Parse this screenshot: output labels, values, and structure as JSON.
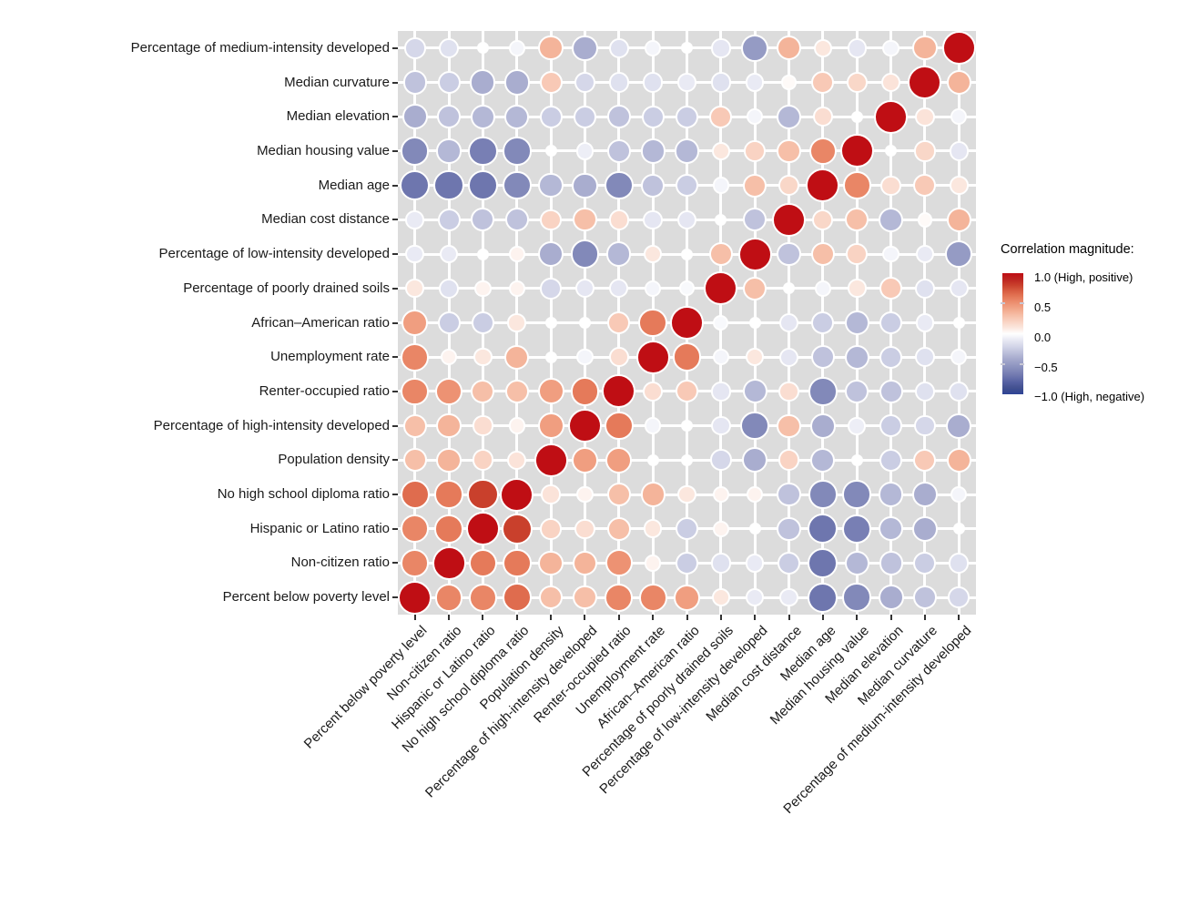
{
  "chart_data": {
    "type": "heatmap",
    "subtype": "correlogram-bubble-matrix",
    "title": "",
    "variables": [
      "Percent below poverty level",
      "Non-citizen ratio",
      "Hispanic or Latino ratio",
      "No high school diploma ratio",
      "Population density",
      "Percentage of high-intensity developed",
      "Renter-occupied ratio",
      "Unemployment rate",
      "African–American ratio",
      "Percentage of poorly drained soils",
      "Percentage of low-intensity developed",
      "Median cost distance",
      "Median age",
      "Median housing value",
      "Median elevation",
      "Median curvature",
      "Percentage of medium-intensity developed"
    ],
    "x_axis_order": "same as variables, left to right",
    "y_axis_order": "reverse of variables, top to bottom",
    "matrix": [
      [
        1.0,
        0.55,
        0.55,
        0.65,
        0.3,
        0.3,
        0.55,
        0.55,
        0.45,
        0.1,
        -0.1,
        -0.1,
        -0.7,
        -0.6,
        -0.4,
        -0.3,
        -0.2
      ],
      [
        0.55,
        1.0,
        0.6,
        0.6,
        0.35,
        0.35,
        0.5,
        0.05,
        -0.25,
        -0.15,
        -0.1,
        -0.25,
        -0.7,
        -0.35,
        -0.3,
        -0.25,
        -0.15
      ],
      [
        0.55,
        0.6,
        1.0,
        0.8,
        0.2,
        0.15,
        0.3,
        0.1,
        -0.25,
        0.05,
        0.0,
        -0.3,
        -0.7,
        -0.65,
        -0.35,
        -0.4,
        0.0
      ],
      [
        0.65,
        0.6,
        0.8,
        1.0,
        0.12,
        0.05,
        0.3,
        0.35,
        0.1,
        0.05,
        0.05,
        -0.3,
        -0.6,
        -0.6,
        -0.35,
        -0.4,
        -0.05
      ],
      [
        0.3,
        0.35,
        0.2,
        0.12,
        1.0,
        0.45,
        0.45,
        0.0,
        0.0,
        -0.2,
        -0.4,
        0.2,
        -0.35,
        0.0,
        -0.25,
        0.25,
        0.35
      ],
      [
        0.3,
        0.35,
        0.15,
        0.05,
        0.45,
        1.0,
        0.6,
        -0.05,
        0.0,
        -0.12,
        -0.6,
        0.3,
        -0.4,
        -0.08,
        -0.25,
        -0.2,
        -0.4
      ],
      [
        0.55,
        0.5,
        0.3,
        0.3,
        0.45,
        0.6,
        1.0,
        0.15,
        0.25,
        -0.12,
        -0.35,
        0.15,
        -0.6,
        -0.3,
        -0.3,
        -0.15,
        -0.15
      ],
      [
        0.55,
        0.05,
        0.1,
        0.35,
        0.0,
        -0.05,
        0.15,
        1.0,
        0.6,
        -0.05,
        0.1,
        -0.12,
        -0.3,
        -0.35,
        -0.25,
        -0.15,
        -0.05
      ],
      [
        0.45,
        -0.25,
        -0.25,
        0.1,
        0.0,
        0.0,
        0.25,
        0.6,
        1.0,
        -0.03,
        0.0,
        -0.12,
        -0.25,
        -0.35,
        -0.25,
        -0.1,
        0.0
      ],
      [
        0.1,
        -0.15,
        0.05,
        0.05,
        -0.2,
        -0.12,
        -0.12,
        -0.05,
        -0.03,
        1.0,
        0.3,
        0.0,
        -0.05,
        0.1,
        0.25,
        -0.15,
        -0.12
      ],
      [
        -0.1,
        -0.1,
        0.0,
        0.05,
        -0.4,
        -0.6,
        -0.35,
        0.1,
        0.0,
        0.3,
        1.0,
        -0.3,
        0.3,
        0.2,
        -0.05,
        -0.1,
        -0.5
      ],
      [
        -0.1,
        -0.25,
        -0.3,
        -0.3,
        0.2,
        0.3,
        0.15,
        -0.12,
        -0.12,
        0.0,
        -0.3,
        1.0,
        0.18,
        0.3,
        -0.35,
        0.02,
        0.35
      ],
      [
        -0.7,
        -0.7,
        -0.7,
        -0.6,
        -0.35,
        -0.4,
        -0.6,
        -0.3,
        -0.25,
        -0.05,
        0.3,
        0.18,
        1.0,
        0.55,
        0.15,
        0.25,
        0.1
      ],
      [
        -0.6,
        -0.35,
        -0.65,
        -0.6,
        0.0,
        -0.08,
        -0.3,
        -0.35,
        -0.35,
        0.1,
        0.2,
        0.3,
        0.55,
        1.0,
        0.0,
        0.18,
        -0.12
      ],
      [
        -0.4,
        -0.3,
        -0.35,
        -0.35,
        -0.25,
        -0.25,
        -0.3,
        -0.25,
        -0.25,
        0.25,
        -0.05,
        -0.35,
        0.15,
        0.0,
        1.0,
        0.12,
        -0.05
      ],
      [
        -0.3,
        -0.25,
        -0.4,
        -0.4,
        0.25,
        -0.2,
        -0.15,
        -0.15,
        -0.1,
        -0.15,
        -0.1,
        0.02,
        0.25,
        0.18,
        0.12,
        1.0,
        0.35
      ],
      [
        -0.2,
        -0.15,
        0.0,
        -0.05,
        0.35,
        -0.4,
        -0.15,
        -0.05,
        0.0,
        -0.12,
        -0.5,
        0.35,
        0.1,
        -0.12,
        -0.05,
        0.35,
        1.0
      ]
    ],
    "legend": {
      "title": "Correlation magnitude:",
      "tick_labels": [
        "1.0 (High, positive)",
        "0.5",
        "0.0",
        "−0.5",
        "−1.0 (High, negative)"
      ],
      "range": [
        -1,
        1
      ],
      "position": "right"
    },
    "grid": "on",
    "encoding": "circle area and color encode correlation; red positive, blue negative"
  },
  "colors": {
    "panel_background": "#dcdcdc",
    "gridline": "#ffffff",
    "dot_ring": "#ffffff",
    "axis_text": "#1a1a1a",
    "tick_mark": "#333333",
    "scale_positive": [
      [
        0,
        "#ffffff"
      ],
      [
        0.1,
        "#fbe7de"
      ],
      [
        0.2,
        "#f9d3c3"
      ],
      [
        0.3,
        "#f6bfa8"
      ],
      [
        0.4,
        "#f2a98c"
      ],
      [
        0.5,
        "#ed9273"
      ],
      [
        0.6,
        "#e57a5a"
      ],
      [
        0.7,
        "#d95f43"
      ],
      [
        0.8,
        "#c9402c"
      ],
      [
        0.9,
        "#bd2520"
      ],
      [
        1,
        "#bf0e14"
      ]
    ],
    "scale_negative": [
      [
        0,
        "#ffffff"
      ],
      [
        0.1,
        "#e9eaf4"
      ],
      [
        0.2,
        "#d5d7e9"
      ],
      [
        0.3,
        "#bfc2dc"
      ],
      [
        0.4,
        "#a9adcf"
      ],
      [
        0.5,
        "#959bc4"
      ],
      [
        0.6,
        "#8289b9"
      ],
      [
        0.7,
        "#6e76ae"
      ],
      [
        0.8,
        "#5560a2"
      ],
      [
        0.9,
        "#41508f"
      ],
      [
        1,
        "#2f4497"
      ]
    ]
  }
}
